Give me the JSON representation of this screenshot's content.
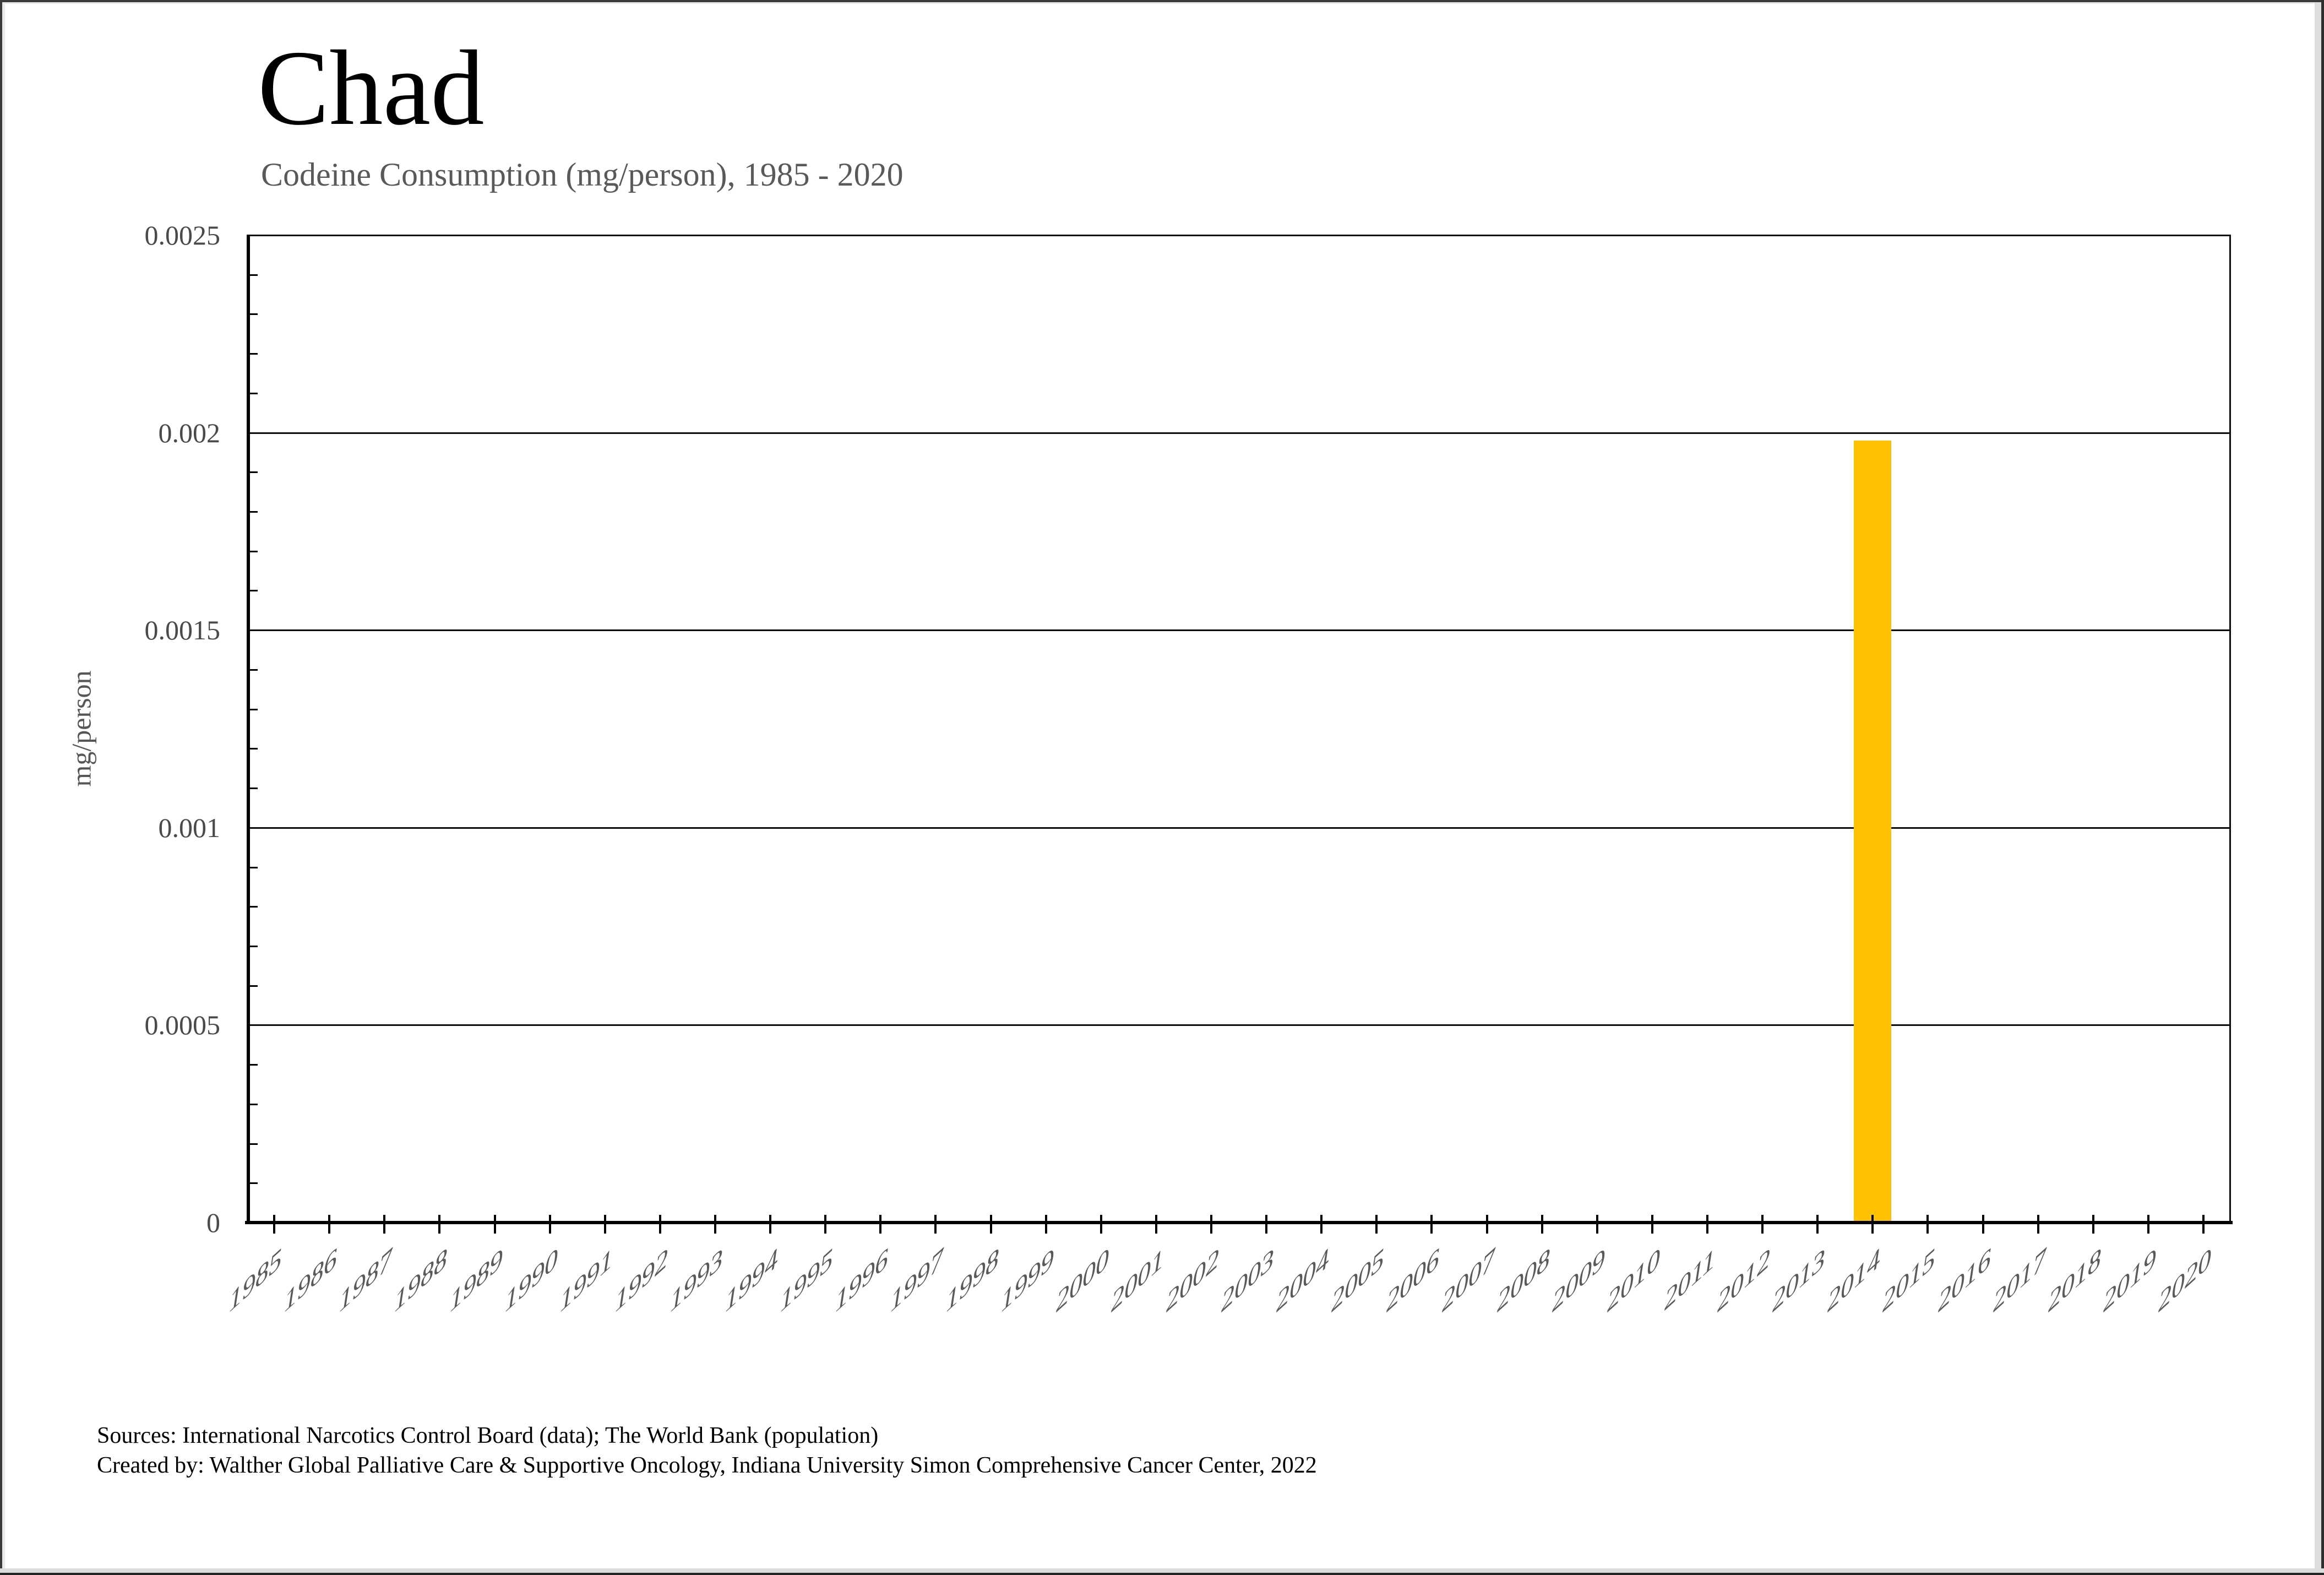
{
  "window": {
    "background": "#ffffff",
    "frame_color": "#3a3a3a"
  },
  "chart_data": {
    "type": "bar",
    "title": "Chad",
    "subtitle": "Codeine Consumption (mg/person), 1985 - 2020",
    "xlabel": "",
    "ylabel": "mg/person",
    "categories": [
      "1985",
      "1986",
      "1987",
      "1988",
      "1989",
      "1990",
      "1991",
      "1992",
      "1993",
      "1994",
      "1995",
      "1996",
      "1997",
      "1998",
      "1999",
      "2000",
      "2001",
      "2002",
      "2003",
      "2004",
      "2005",
      "2006",
      "2007",
      "2008",
      "2009",
      "2010",
      "2011",
      "2012",
      "2013",
      "2014",
      "2015",
      "2016",
      "2017",
      "2018",
      "2019",
      "2020"
    ],
    "values": [
      0,
      0,
      0,
      0,
      0,
      0,
      0,
      0,
      0,
      0,
      0,
      0,
      0,
      0,
      0,
      0,
      0,
      0,
      0,
      0,
      0,
      0,
      0,
      0,
      0,
      0,
      0,
      0,
      0,
      0.00198,
      0,
      0,
      0,
      0,
      0,
      0
    ],
    "ylim": [
      0,
      0.0025
    ],
    "ytick_step": 0.0005,
    "ytick_labels": [
      "0",
      "0.0005",
      "0.001",
      "0.0015",
      "0.002",
      "0.0025"
    ],
    "y_minor_tick_step": 0.0001,
    "grid": true,
    "legend_position": "none",
    "bar_color": "#FFC000",
    "gridline_color": "#0d0d0d",
    "axis_color": "#000000",
    "tick_label_color": "#4a4a4a",
    "x_tick_label_color": "#5a5a5a"
  },
  "footer": {
    "line1": "Sources: International Narcotics Control Board (data); The World Bank (population)",
    "line2": "Created by: Walther Global Palliative Care & Supportive Oncology, Indiana University Simon Comprehensive Cancer Center, 2022"
  }
}
